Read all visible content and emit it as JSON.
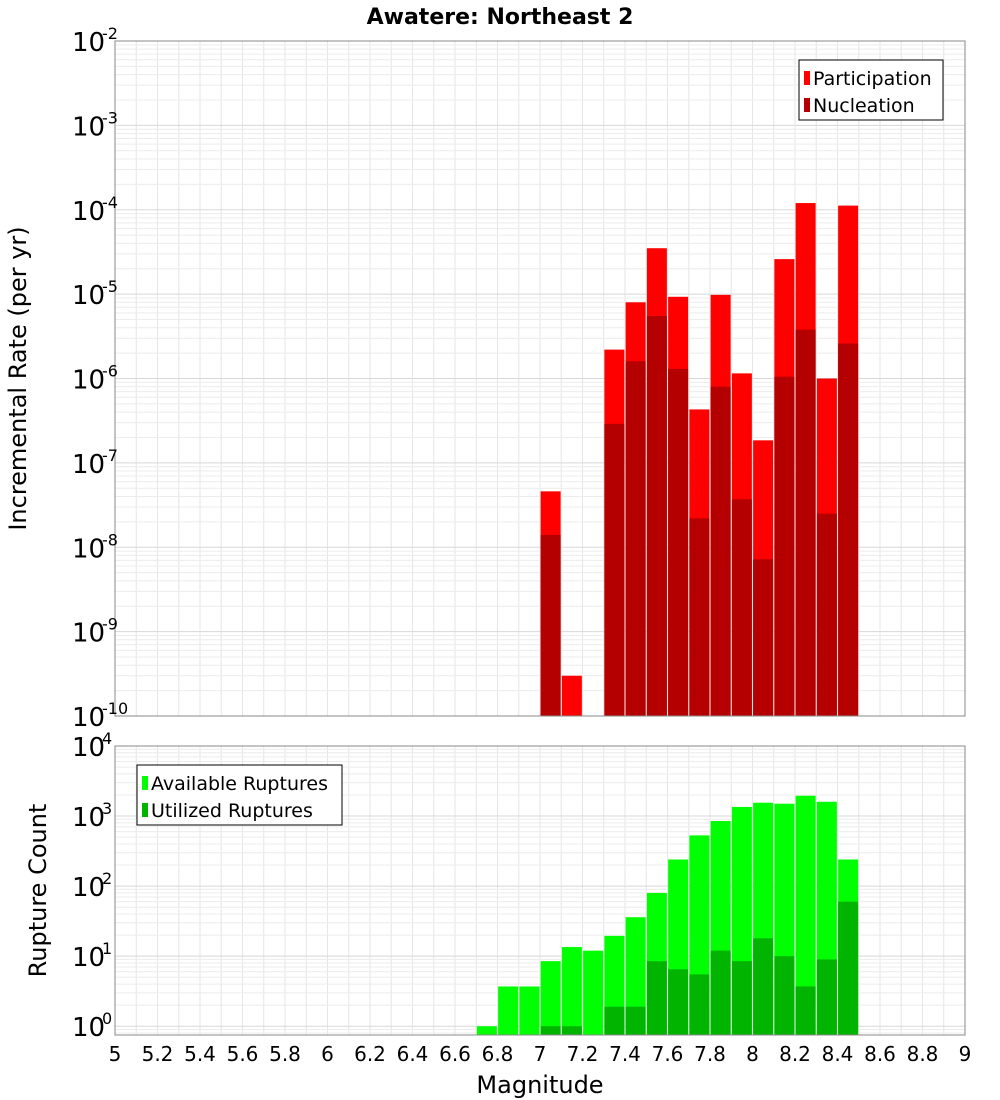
{
  "chart_data": [
    {
      "type": "bar",
      "title": "Awatere: Northeast 2",
      "xlabel": "Magnitude",
      "ylabel": "Incremental Rate (per yr)",
      "yscale": "log",
      "ylim": [
        1e-10,
        0.01
      ],
      "xlim": [
        5,
        9
      ],
      "grid": true,
      "legend_position": "top-right",
      "x": [
        7.05,
        7.15,
        7.35,
        7.45,
        7.55,
        7.65,
        7.75,
        7.85,
        7.95,
        8.05,
        8.15,
        8.25,
        8.35,
        8.45
      ],
      "series": [
        {
          "name": "Participation",
          "color": "#ff0000",
          "values": [
            4.6e-08,
            3e-10,
            2.2e-06,
            8e-06,
            3.5e-05,
            9.3e-06,
            4.3e-07,
            9.8e-06,
            1.15e-06,
            1.85e-07,
            2.6e-05,
            0.00012,
            1e-06,
            0.000112
          ]
        },
        {
          "name": "Nucleation",
          "color": "#b40000",
          "values": [
            1.4e-08,
            null,
            2.9e-07,
            1.6e-06,
            5.5e-06,
            1.3e-06,
            2.2e-08,
            8e-07,
            3.7e-08,
            7.2e-09,
            1.05e-06,
            3.8e-06,
            2.5e-08,
            2.6e-06
          ]
        }
      ]
    },
    {
      "type": "bar",
      "xlabel": "Magnitude",
      "ylabel": "Rupture Count",
      "yscale": "log",
      "ylim": [
        0.75,
        10000.0
      ],
      "xlim": [
        5,
        9
      ],
      "grid": true,
      "legend_position": "top-left",
      "xticks": [
        "5",
        "5.2",
        "5.4",
        "5.6",
        "5.8",
        "6",
        "6.2",
        "6.4",
        "6.6",
        "6.8",
        "7",
        "7.2",
        "7.4",
        "7.6",
        "7.8",
        "8",
        "8.2",
        "8.4",
        "8.6",
        "8.8",
        "9"
      ],
      "x": [
        6.75,
        6.85,
        6.95,
        7.05,
        7.15,
        7.25,
        7.35,
        7.45,
        7.55,
        7.65,
        7.75,
        7.85,
        7.95,
        8.05,
        8.15,
        8.25,
        8.35,
        8.45
      ],
      "series": [
        {
          "name": "Available Ruptures",
          "color": "#00ff00",
          "values": [
            1,
            3.7,
            3.7,
            8.5,
            13.5,
            12,
            19.5,
            36,
            80,
            240,
            530,
            850,
            1350,
            1550,
            1500,
            1950,
            1600,
            240
          ]
        },
        {
          "name": "Utilized Ruptures",
          "color": "#00b400",
          "values": [
            null,
            null,
            null,
            1,
            1,
            null,
            1.9,
            1.9,
            8.5,
            6.5,
            5.5,
            12,
            8.5,
            18,
            10,
            3.7,
            9,
            60
          ]
        }
      ]
    }
  ]
}
